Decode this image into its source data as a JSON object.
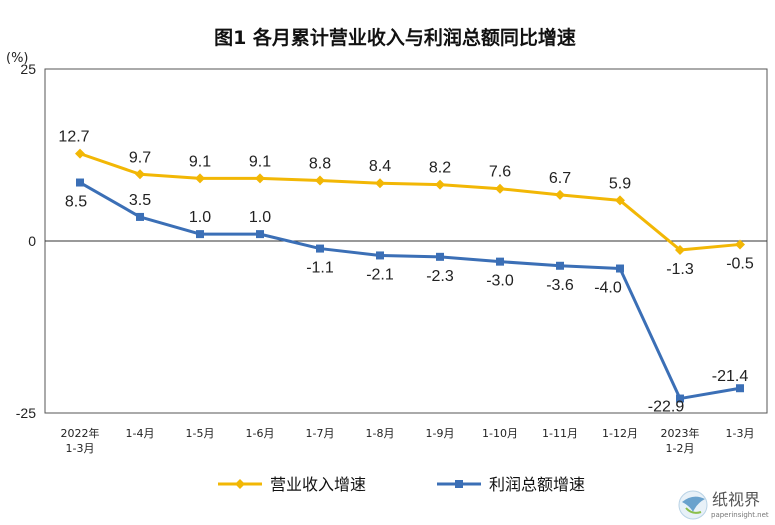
{
  "colors": {
    "series1": "#f2b705",
    "series2": "#3b6fb6",
    "axis": "#333333",
    "frame": "#555555"
  },
  "chart_data": {
    "type": "line",
    "title": "图1  各月累计营业收入与利润总额同比增速",
    "ylabel": "(%)",
    "ylim": [
      -25,
      25
    ],
    "yticks": [
      "25",
      "0",
      "-25"
    ],
    "grid": false,
    "legend_position": "bottom",
    "categories": [
      [
        "2022年",
        "1-3月"
      ],
      [
        "1-4月"
      ],
      [
        "1-5月"
      ],
      [
        "1-6月"
      ],
      [
        "1-7月"
      ],
      [
        "1-8月"
      ],
      [
        "1-9月"
      ],
      [
        "1-10月"
      ],
      [
        "1-11月"
      ],
      [
        "1-12月"
      ],
      [
        "2023年",
        "1-2月"
      ],
      [
        "1-3月"
      ]
    ],
    "series": [
      {
        "name": "营业收入增速",
        "values": [
          12.7,
          9.7,
          9.1,
          9.1,
          8.8,
          8.4,
          8.2,
          7.6,
          6.7,
          5.9,
          -1.3,
          -0.5
        ],
        "labels": [
          "12.7",
          "9.7",
          "9.1",
          "9.1",
          "8.8",
          "8.4",
          "8.2",
          "7.6",
          "6.7",
          "5.9",
          "-1.3",
          "-0.5"
        ]
      },
      {
        "name": "利润总额增速",
        "values": [
          8.5,
          3.5,
          1.0,
          1.0,
          -1.1,
          -2.1,
          -2.3,
          -3.0,
          -3.6,
          -4.0,
          -22.9,
          -21.4
        ],
        "labels": [
          "8.5",
          "3.5",
          "1.0",
          "1.0",
          "-1.1",
          "-2.1",
          "-2.3",
          "-3.0",
          "-3.6",
          "-4.0",
          "-22.9",
          "-21.4"
        ]
      }
    ]
  },
  "watermark": {
    "name": "纸视界",
    "site": "paperinsight.net",
    "logo_icon": "paper-bird-logo-icon"
  }
}
